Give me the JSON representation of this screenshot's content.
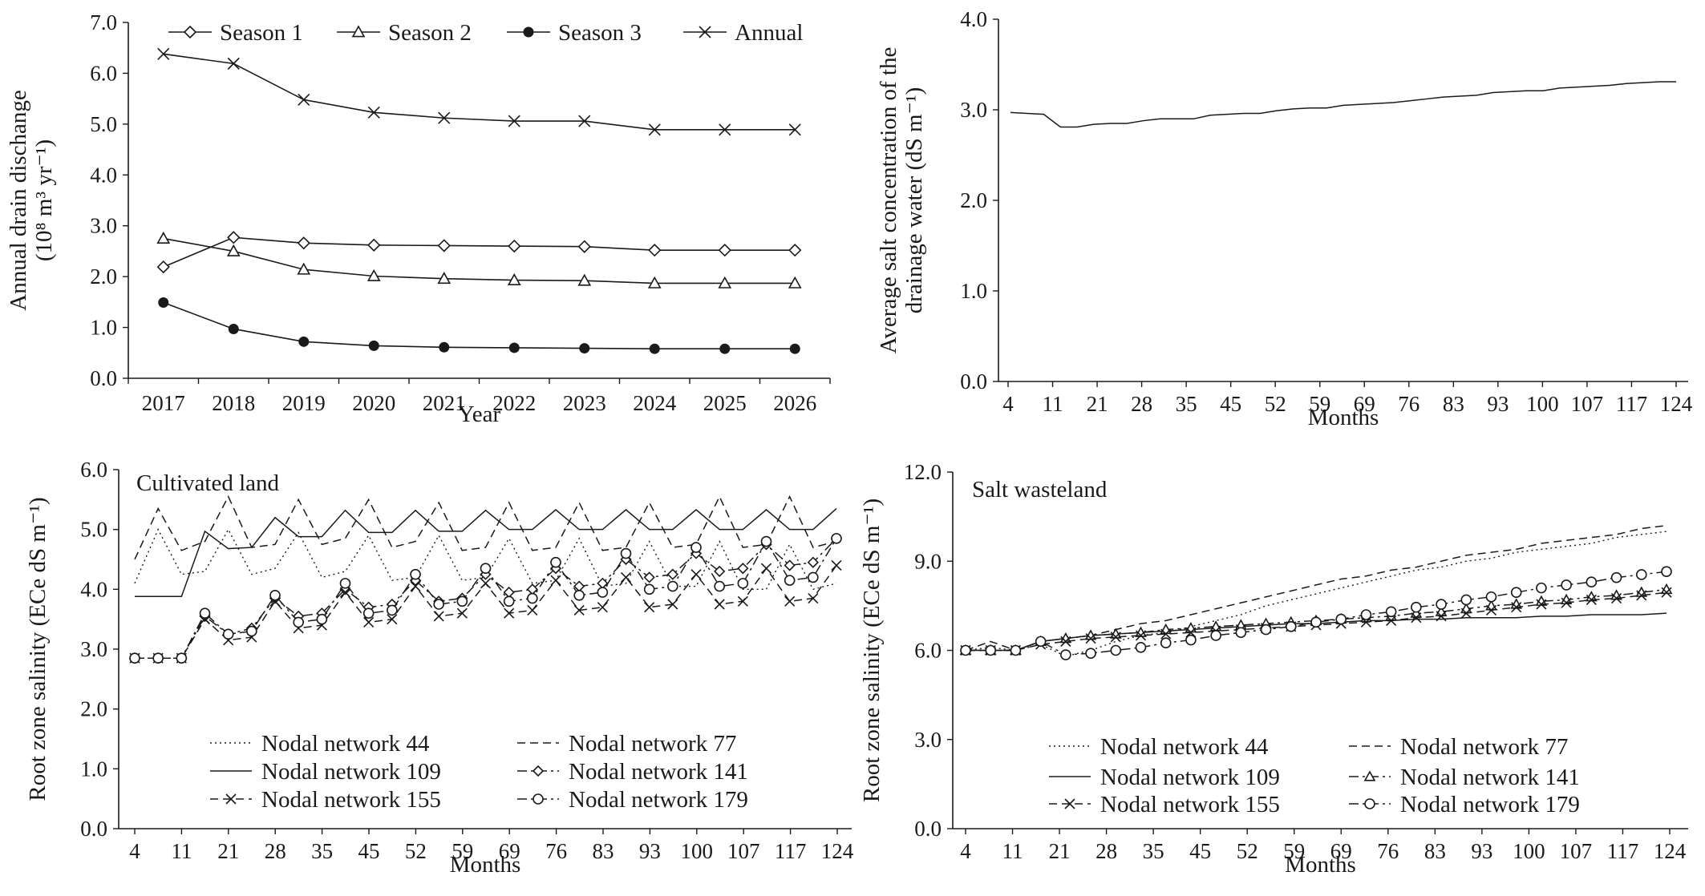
{
  "chart_data": [
    {
      "id": "drain",
      "type": "line",
      "xlabel": "Year",
      "ylabel_lines": [
        "Annual drain dischange",
        "(10⁸ m³ yr⁻¹)"
      ],
      "ylim": [
        0,
        7
      ],
      "yticks": [
        "0.0",
        "1.0",
        "2.0",
        "3.0",
        "4.0",
        "5.0",
        "6.0",
        "7.0"
      ],
      "categories": [
        "2017",
        "2018",
        "2019",
        "2020",
        "2021",
        "2022",
        "2023",
        "2024",
        "2025",
        "2026"
      ],
      "legend_position": "top",
      "series": [
        {
          "name": "Season 1",
          "marker": "diamond",
          "values": [
            2.19,
            2.77,
            2.66,
            2.62,
            2.61,
            2.6,
            2.59,
            2.52,
            2.52,
            2.52
          ]
        },
        {
          "name": "Season 2",
          "marker": "triangle",
          "values": [
            2.75,
            2.5,
            2.14,
            2.01,
            1.96,
            1.93,
            1.92,
            1.87,
            1.87,
            1.87
          ]
        },
        {
          "name": "Season 3",
          "marker": "filled-circle",
          "values": [
            1.49,
            0.97,
            0.72,
            0.64,
            0.61,
            0.6,
            0.59,
            0.58,
            0.58,
            0.58
          ]
        },
        {
          "name": "Annual",
          "marker": "x",
          "values": [
            6.38,
            6.19,
            5.48,
            5.23,
            5.12,
            5.06,
            5.06,
            4.89,
            4.89,
            4.89
          ]
        }
      ]
    },
    {
      "id": "salt",
      "type": "line",
      "xlabel": "Months",
      "ylabel_lines": [
        "Average salt concentration of the",
        "drainage water (dS m⁻¹)"
      ],
      "ylim": [
        0,
        4
      ],
      "yticks": [
        "0.0",
        "1.0",
        "2.0",
        "3.0",
        "4.0"
      ],
      "xtick_labels": [
        "4",
        "11",
        "21",
        "28",
        "35",
        "45",
        "52",
        "59",
        "69",
        "76",
        "83",
        "93",
        "100",
        "107",
        "117",
        "124"
      ],
      "series": [
        {
          "name": "Average salt concentration",
          "values": [
            2.97,
            2.96,
            2.95,
            2.81,
            2.81,
            2.84,
            2.85,
            2.85,
            2.88,
            2.9,
            2.9,
            2.9,
            2.94,
            2.95,
            2.96,
            2.96,
            2.99,
            3.01,
            3.02,
            3.02,
            3.05,
            3.06,
            3.07,
            3.08,
            3.1,
            3.12,
            3.14,
            3.15,
            3.16,
            3.19,
            3.2,
            3.21,
            3.21,
            3.24,
            3.25,
            3.26,
            3.27,
            3.29,
            3.3,
            3.31,
            3.31
          ]
        }
      ]
    },
    {
      "id": "cultivated",
      "type": "line",
      "title": "Cultivated land",
      "xlabel": "Months",
      "ylabel_lines": [
        "Root zone salinity (ECe dS m⁻¹)"
      ],
      "ylim": [
        0,
        6
      ],
      "yticks": [
        "0.0",
        "1.0",
        "2.0",
        "3.0",
        "4.0",
        "5.0",
        "6.0"
      ],
      "xtick_labels": [
        "4",
        "11",
        "21",
        "28",
        "35",
        "45",
        "52",
        "59",
        "69",
        "76",
        "83",
        "93",
        "100",
        "107",
        "117",
        "124"
      ],
      "legend_position": "bottom",
      "series": [
        {
          "name": "Nodal network 44",
          "style": "dotted",
          "marker": "none",
          "values": [
            4.1,
            5.0,
            4.25,
            4.3,
            5.0,
            4.25,
            4.35,
            4.95,
            4.2,
            4.3,
            4.9,
            4.15,
            4.2,
            4.9,
            4.15,
            4.2,
            4.85,
            4.1,
            4.15,
            4.85,
            4.05,
            4.1,
            4.8,
            4.05,
            4.05,
            4.8,
            4.0,
            4.0,
            4.75,
            4.0,
            4.1
          ]
        },
        {
          "name": "Nodal network 77",
          "style": "dashed",
          "marker": "none",
          "values": [
            4.5,
            5.35,
            4.65,
            4.8,
            5.55,
            4.7,
            4.75,
            5.5,
            4.75,
            4.85,
            5.5,
            4.7,
            4.8,
            5.45,
            4.65,
            4.7,
            5.45,
            4.65,
            4.7,
            5.45,
            4.65,
            4.7,
            5.45,
            4.7,
            4.75,
            5.55,
            4.7,
            4.75,
            5.55,
            4.7,
            4.8
          ]
        },
        {
          "name": "Nodal network 109",
          "style": "solid",
          "marker": "none",
          "values": [
            3.88,
            3.88,
            3.88,
            4.97,
            4.68,
            4.7,
            5.2,
            4.88,
            4.88,
            5.32,
            4.95,
            4.95,
            5.32,
            4.97,
            4.97,
            5.32,
            5.0,
            5.0,
            5.33,
            5.0,
            5.0,
            5.33,
            5.0,
            5.0,
            5.33,
            5.0,
            5.0,
            5.33,
            5.0,
            5.0,
            5.35
          ]
        },
        {
          "name": "Nodal network 141",
          "style": "dashdot",
          "marker": "diamond",
          "values": [
            2.85,
            2.85,
            2.85,
            3.55,
            3.25,
            3.35,
            3.85,
            3.55,
            3.6,
            4.0,
            3.7,
            3.75,
            4.15,
            3.8,
            3.85,
            4.25,
            3.95,
            4.0,
            4.35,
            4.05,
            4.1,
            4.5,
            4.2,
            4.25,
            4.6,
            4.3,
            4.35,
            4.75,
            4.4,
            4.45,
            4.85
          ]
        },
        {
          "name": "Nodal network 155",
          "style": "dashed",
          "marker": "x",
          "values": [
            2.85,
            2.85,
            2.85,
            3.5,
            3.15,
            3.2,
            3.8,
            3.35,
            3.4,
            3.95,
            3.45,
            3.5,
            4.05,
            3.55,
            3.6,
            4.1,
            3.6,
            3.65,
            4.15,
            3.65,
            3.7,
            4.2,
            3.7,
            3.75,
            4.25,
            3.75,
            3.8,
            4.35,
            3.8,
            3.85,
            4.4
          ]
        },
        {
          "name": "Nodal network 179",
          "style": "dashdot",
          "marker": "circle",
          "values": [
            2.85,
            2.85,
            2.85,
            3.6,
            3.25,
            3.3,
            3.9,
            3.45,
            3.5,
            4.1,
            3.6,
            3.65,
            4.25,
            3.75,
            3.8,
            4.35,
            3.8,
            3.85,
            4.45,
            3.9,
            3.95,
            4.6,
            4.0,
            4.05,
            4.7,
            4.05,
            4.1,
            4.8,
            4.15,
            4.2,
            4.85
          ]
        }
      ]
    },
    {
      "id": "wasteland",
      "type": "line",
      "title": "Salt wasteland",
      "xlabel": "Months",
      "ylabel_lines": [
        "Root zone salinity (ECe dS m⁻¹)"
      ],
      "ylim": [
        0,
        12
      ],
      "yticks": [
        "0.0",
        "3.0",
        "6.0",
        "9.0",
        "12.0"
      ],
      "xtick_labels": [
        "4",
        "11",
        "21",
        "28",
        "35",
        "45",
        "52",
        "59",
        "69",
        "76",
        "83",
        "93",
        "100",
        "107",
        "117",
        "124"
      ],
      "legend_position": "bottom",
      "series": [
        {
          "name": "Nodal network 44",
          "style": "dotted",
          "marker": "none",
          "values": [
            6.0,
            6.1,
            6.0,
            6.2,
            5.8,
            6.0,
            6.3,
            6.5,
            6.6,
            6.8,
            7.0,
            7.2,
            7.5,
            7.7,
            7.9,
            8.1,
            8.3,
            8.5,
            8.7,
            8.8,
            9.0,
            9.1,
            9.3,
            9.4,
            9.5,
            9.6,
            9.8,
            9.9,
            10.0
          ]
        },
        {
          "name": "Nodal network 77",
          "style": "dashed",
          "marker": "none",
          "values": [
            6.0,
            6.3,
            6.0,
            6.3,
            6.4,
            6.5,
            6.7,
            6.9,
            7.0,
            7.2,
            7.4,
            7.6,
            7.8,
            8.0,
            8.2,
            8.4,
            8.5,
            8.7,
            8.8,
            9.0,
            9.2,
            9.3,
            9.4,
            9.6,
            9.7,
            9.8,
            9.9,
            10.1,
            10.2
          ]
        },
        {
          "name": "Nodal network 109",
          "style": "solid",
          "marker": "none",
          "values": [
            6.0,
            6.0,
            6.0,
            6.3,
            6.4,
            6.5,
            6.55,
            6.6,
            6.65,
            6.7,
            6.75,
            6.8,
            6.85,
            6.9,
            6.9,
            6.95,
            7.0,
            7.0,
            7.05,
            7.05,
            7.1,
            7.1,
            7.1,
            7.15,
            7.15,
            7.2,
            7.2,
            7.2,
            7.25
          ]
        },
        {
          "name": "Nodal network 141",
          "style": "dashdot",
          "marker": "triangle",
          "values": [
            6.0,
            6.0,
            6.0,
            6.3,
            6.4,
            6.5,
            6.55,
            6.6,
            6.7,
            6.75,
            6.8,
            6.85,
            6.9,
            6.95,
            7.0,
            7.05,
            7.1,
            7.15,
            7.25,
            7.3,
            7.4,
            7.5,
            7.55,
            7.65,
            7.7,
            7.8,
            7.85,
            7.95,
            8.05
          ]
        },
        {
          "name": "Nodal network 155",
          "style": "dashed",
          "marker": "x",
          "values": [
            6.0,
            6.0,
            6.0,
            6.2,
            6.3,
            6.4,
            6.45,
            6.5,
            6.55,
            6.6,
            6.65,
            6.7,
            6.75,
            6.8,
            6.85,
            6.9,
            6.95,
            7.0,
            7.1,
            7.15,
            7.25,
            7.35,
            7.45,
            7.55,
            7.6,
            7.7,
            7.75,
            7.85,
            7.95
          ]
        },
        {
          "name": "Nodal network 179",
          "style": "dashdot",
          "marker": "circle",
          "values": [
            6.0,
            6.0,
            6.0,
            6.3,
            5.85,
            5.9,
            6.0,
            6.1,
            6.25,
            6.35,
            6.5,
            6.6,
            6.7,
            6.8,
            6.95,
            7.05,
            7.2,
            7.3,
            7.45,
            7.55,
            7.7,
            7.8,
            7.95,
            8.1,
            8.2,
            8.3,
            8.45,
            8.55,
            8.65
          ]
        }
      ]
    }
  ]
}
